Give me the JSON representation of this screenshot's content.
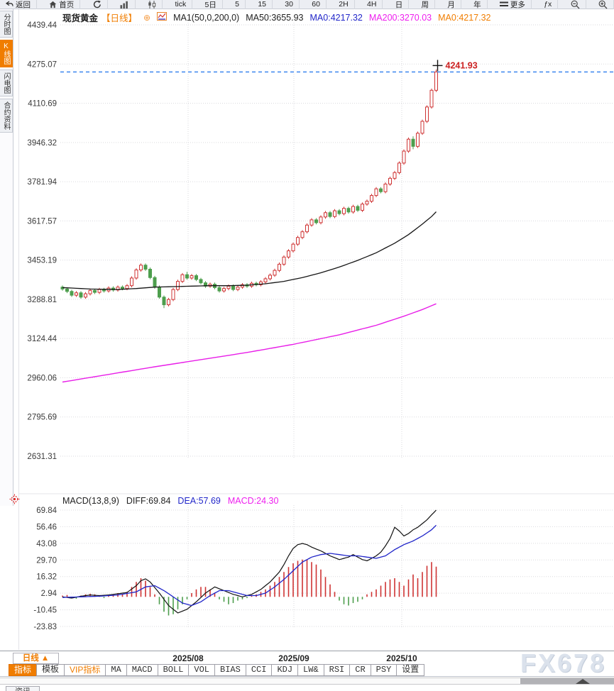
{
  "toolbar": {
    "items": [
      {
        "icon": "back-icon",
        "label": "返回"
      },
      {
        "icon": "home-icon",
        "label": "首页"
      },
      {
        "icon": "refresh-icon",
        "label": ""
      },
      {
        "icon": "bar-chart-icon",
        "label": ""
      },
      {
        "icon": "candlestick-icon",
        "label": ""
      },
      {
        "icon": "",
        "label": "tick"
      },
      {
        "icon": "",
        "label": "5日"
      },
      {
        "icon": "",
        "label": "5"
      },
      {
        "icon": "",
        "label": "15"
      },
      {
        "icon": "",
        "label": "30"
      },
      {
        "icon": "",
        "label": "60"
      },
      {
        "icon": "",
        "label": "2H"
      },
      {
        "icon": "",
        "label": "4H"
      },
      {
        "icon": "",
        "label": "日"
      },
      {
        "icon": "",
        "label": "周"
      },
      {
        "icon": "",
        "label": "月"
      },
      {
        "icon": "",
        "label": "年"
      },
      {
        "icon": "more-icon",
        "label": "更多"
      },
      {
        "icon": "",
        "label": "ƒx"
      },
      {
        "icon": "zoom-out-icon",
        "label": ""
      },
      {
        "icon": "zoom-in-icon",
        "label": ""
      }
    ]
  },
  "sidebar": {
    "items": [
      {
        "label": "分时图",
        "selected": false
      },
      {
        "label": "K线图",
        "selected": true
      },
      {
        "label": "闪电图",
        "selected": false
      },
      {
        "label": "合约资料",
        "selected": false
      }
    ]
  },
  "chart_header": {
    "symbol": "现货黄金",
    "period": "【日线】",
    "ma_settings": "MA1(50,0,200,0)",
    "ma50": "MA50:3655.93",
    "ma0_blue": "MA0:4217.32",
    "ma200": "MA200:3270.03",
    "ma0_orange": "MA0:4217.32"
  },
  "macd_header": {
    "title": "MACD(13,8,9)",
    "diff": "DIFF:69.84",
    "dea": "DEA:57.69",
    "macd": "MACD:24.30"
  },
  "x_axis": {
    "period_label": "日线 ▲",
    "months": [
      "2025/08",
      "2025/09",
      "2025/10"
    ]
  },
  "tabs": [
    {
      "label": "指标",
      "selected": true,
      "accent": false
    },
    {
      "label": "模板",
      "selected": false,
      "accent": false
    },
    {
      "label": "VIP指标",
      "selected": false,
      "accent": true
    },
    {
      "label": "MA",
      "selected": false,
      "accent": false
    },
    {
      "label": "MACD",
      "selected": false,
      "accent": false
    },
    {
      "label": "BOLL",
      "selected": false,
      "accent": false
    },
    {
      "label": "VOL",
      "selected": false,
      "accent": false
    },
    {
      "label": "BIAS",
      "selected": false,
      "accent": false
    },
    {
      "label": "CCI",
      "selected": false,
      "accent": false
    },
    {
      "label": "KDJ",
      "selected": false,
      "accent": false
    },
    {
      "label": "LW&",
      "selected": false,
      "accent": false
    },
    {
      "label": "RSI",
      "selected": false,
      "accent": false
    },
    {
      "label": "CR",
      "selected": false,
      "accent": false
    },
    {
      "label": "PSY",
      "selected": false,
      "accent": false
    },
    {
      "label": "设置",
      "selected": false,
      "accent": false
    }
  ],
  "bottom_bar": {
    "news_tab": "资讯"
  },
  "watermark": "FX678",
  "colors": {
    "accent_orange": "#f07d00",
    "up_red": "#cf3333",
    "down_green": "#4d9e4d",
    "ma50_black": "#151515",
    "ma200_magenta": "#e81ee8",
    "dea_blue": "#2126c9",
    "last_price_line_blue": "#2e7ded",
    "last_price_text_red": "#cc2222",
    "grid": "#dadade"
  },
  "chart_data": {
    "type": "candlestick",
    "title": "现货黄金 日线",
    "main": {
      "y_ticks": [
        4439.44,
        4275.07,
        4110.69,
        3946.32,
        3781.94,
        3617.57,
        3453.19,
        3288.81,
        3124.44,
        2960.06,
        2795.69,
        2631.31
      ],
      "x_ticks": [
        "2025/08",
        "2025/09",
        "2025/10"
      ],
      "last_price": 4241.93,
      "candles": [
        [
          3340,
          3347,
          3325,
          3332
        ],
        [
          3332,
          3339,
          3315,
          3322
        ],
        [
          3322,
          3329,
          3299,
          3306
        ],
        [
          3306,
          3323,
          3299,
          3316
        ],
        [
          3316,
          3323,
          3291,
          3298
        ],
        [
          3298,
          3319,
          3291,
          3312
        ],
        [
          3312,
          3333,
          3305,
          3326
        ],
        [
          3326,
          3333,
          3311,
          3318
        ],
        [
          3318,
          3337,
          3311,
          3330
        ],
        [
          3330,
          3337,
          3317,
          3324
        ],
        [
          3324,
          3343,
          3317,
          3336
        ],
        [
          3336,
          3343,
          3321,
          3328
        ],
        [
          3328,
          3347,
          3321,
          3340
        ],
        [
          3340,
          3347,
          3327,
          3334
        ],
        [
          3334,
          3353,
          3327,
          3346
        ],
        [
          3346,
          3385,
          3339,
          3378
        ],
        [
          3378,
          3419,
          3371,
          3412
        ],
        [
          3412,
          3439,
          3405,
          3432
        ],
        [
          3432,
          3439,
          3408,
          3415
        ],
        [
          3415,
          3422,
          3373,
          3380
        ],
        [
          3380,
          3387,
          3333,
          3340
        ],
        [
          3340,
          3347,
          3291,
          3298
        ],
        [
          3298,
          3305,
          3252,
          3266
        ],
        [
          3266,
          3295,
          3259,
          3288
        ],
        [
          3288,
          3337,
          3281,
          3330
        ],
        [
          3330,
          3371,
          3323,
          3364
        ],
        [
          3364,
          3399,
          3357,
          3392
        ],
        [
          3392,
          3404,
          3371,
          3378
        ],
        [
          3378,
          3395,
          3371,
          3388
        ],
        [
          3388,
          3395,
          3365,
          3372
        ],
        [
          3372,
          3379,
          3351,
          3358
        ],
        [
          3358,
          3365,
          3337,
          3344
        ],
        [
          3344,
          3359,
          3337,
          3352
        ],
        [
          3352,
          3359,
          3331,
          3338
        ],
        [
          3338,
          3345,
          3317,
          3324
        ],
        [
          3324,
          3341,
          3317,
          3334
        ],
        [
          3334,
          3351,
          3327,
          3344
        ],
        [
          3344,
          3351,
          3323,
          3330
        ],
        [
          3330,
          3347,
          3323,
          3340
        ],
        [
          3340,
          3357,
          3333,
          3350
        ],
        [
          3350,
          3357,
          3337,
          3344
        ],
        [
          3344,
          3363,
          3337,
          3356
        ],
        [
          3356,
          3363,
          3343,
          3350
        ],
        [
          3350,
          3369,
          3343,
          3362
        ],
        [
          3362,
          3382,
          3355,
          3375
        ],
        [
          3375,
          3397,
          3368,
          3390
        ],
        [
          3390,
          3417,
          3383,
          3410
        ],
        [
          3410,
          3443,
          3403,
          3436
        ],
        [
          3436,
          3473,
          3429,
          3466
        ],
        [
          3466,
          3499,
          3459,
          3492
        ],
        [
          3492,
          3527,
          3485,
          3520
        ],
        [
          3520,
          3555,
          3513,
          3548
        ],
        [
          3548,
          3579,
          3541,
          3572
        ],
        [
          3572,
          3607,
          3565,
          3600
        ],
        [
          3600,
          3629,
          3593,
          3622
        ],
        [
          3622,
          3629,
          3603,
          3610
        ],
        [
          3610,
          3641,
          3603,
          3634
        ],
        [
          3634,
          3659,
          3627,
          3652
        ],
        [
          3652,
          3659,
          3629,
          3636
        ],
        [
          3636,
          3667,
          3629,
          3660
        ],
        [
          3660,
          3667,
          3641,
          3648
        ],
        [
          3648,
          3677,
          3641,
          3670
        ],
        [
          3670,
          3677,
          3648,
          3655
        ],
        [
          3655,
          3685,
          3648,
          3678
        ],
        [
          3678,
          3685,
          3655,
          3662
        ],
        [
          3662,
          3695,
          3655,
          3688
        ],
        [
          3688,
          3707,
          3681,
          3700
        ],
        [
          3700,
          3731,
          3693,
          3724
        ],
        [
          3724,
          3759,
          3717,
          3752
        ],
        [
          3752,
          3759,
          3733,
          3740
        ],
        [
          3740,
          3779,
          3733,
          3772
        ],
        [
          3772,
          3803,
          3765,
          3796
        ],
        [
          3796,
          3827,
          3789,
          3820
        ],
        [
          3820,
          3867,
          3813,
          3860
        ],
        [
          3860,
          3917,
          3853,
          3910
        ],
        [
          3910,
          3967,
          3903,
          3960
        ],
        [
          3960,
          3972,
          3918,
          3930
        ],
        [
          3930,
          3992,
          3923,
          3985
        ],
        [
          3985,
          4042,
          3978,
          4035
        ],
        [
          4035,
          4102,
          4028,
          4095
        ],
        [
          4095,
          4172,
          4088,
          4165
        ],
        [
          4165,
          4252,
          4158,
          4241.93
        ]
      ],
      "ma50_points": [
        [
          0,
          3338
        ],
        [
          6,
          3332
        ],
        [
          12,
          3330
        ],
        [
          16,
          3334
        ],
        [
          20,
          3340
        ],
        [
          24,
          3342
        ],
        [
          28,
          3344
        ],
        [
          32,
          3346
        ],
        [
          36,
          3346
        ],
        [
          40,
          3348
        ],
        [
          44,
          3354
        ],
        [
          48,
          3364
        ],
        [
          52,
          3380
        ],
        [
          56,
          3400
        ],
        [
          60,
          3424
        ],
        [
          64,
          3452
        ],
        [
          68,
          3484
        ],
        [
          72,
          3524
        ],
        [
          75,
          3560
        ],
        [
          78,
          3604
        ],
        [
          80,
          3636
        ],
        [
          81,
          3655.93
        ]
      ],
      "ma200_points": [
        [
          0,
          2942
        ],
        [
          10,
          2974
        ],
        [
          20,
          3006
        ],
        [
          30,
          3036
        ],
        [
          40,
          3066
        ],
        [
          50,
          3100
        ],
        [
          60,
          3140
        ],
        [
          68,
          3180
        ],
        [
          74,
          3218
        ],
        [
          78,
          3246
        ],
        [
          81,
          3270.03
        ]
      ]
    },
    "macd": {
      "y_ticks": [
        69.84,
        56.46,
        43.08,
        29.7,
        16.32,
        2.94,
        -10.45,
        -23.83
      ],
      "histogram": [
        1,
        1.5,
        -1,
        -1.5,
        1,
        2,
        2.5,
        2,
        1,
        -1,
        1.5,
        2,
        3,
        2,
        4,
        8,
        12,
        15,
        13,
        8,
        2,
        -6,
        -12,
        -15,
        -14,
        -10,
        -6,
        -2,
        3,
        6,
        8,
        8,
        6,
        3,
        -2,
        -4,
        -6,
        -5,
        -3,
        -2,
        -1,
        1,
        2,
        4,
        6,
        9,
        12,
        16,
        20,
        24,
        27,
        29,
        30,
        30,
        28,
        26,
        22,
        16,
        10,
        4,
        -3,
        -6,
        -7,
        -5,
        -4,
        -2,
        2,
        4,
        6,
        9,
        12,
        14,
        15,
        12,
        9,
        14,
        18,
        15,
        20,
        25,
        28,
        24.3
      ],
      "diff_points": [
        [
          0,
          0
        ],
        [
          2,
          -1
        ],
        [
          4,
          0.5
        ],
        [
          6,
          1.5
        ],
        [
          8,
          1
        ],
        [
          10,
          1.5
        ],
        [
          12,
          2.5
        ],
        [
          14,
          3.5
        ],
        [
          16,
          9
        ],
        [
          17,
          13
        ],
        [
          18,
          14.5
        ],
        [
          19,
          12
        ],
        [
          21,
          3
        ],
        [
          23,
          -7
        ],
        [
          25,
          -13
        ],
        [
          27,
          -10
        ],
        [
          29,
          -4
        ],
        [
          31,
          3
        ],
        [
          33,
          8
        ],
        [
          35,
          5
        ],
        [
          37,
          2
        ],
        [
          39,
          0
        ],
        [
          41,
          2
        ],
        [
          43,
          6
        ],
        [
          45,
          12
        ],
        [
          47,
          20
        ],
        [
          48,
          26
        ],
        [
          49,
          33
        ],
        [
          50,
          39
        ],
        [
          51,
          42
        ],
        [
          52,
          43
        ],
        [
          53,
          42
        ],
        [
          54,
          40
        ],
        [
          56,
          37
        ],
        [
          58,
          33
        ],
        [
          60,
          30
        ],
        [
          62,
          32
        ],
        [
          63,
          34
        ],
        [
          64,
          32
        ],
        [
          65,
          30
        ],
        [
          66,
          29
        ],
        [
          67,
          31
        ],
        [
          68,
          33
        ],
        [
          69,
          36
        ],
        [
          70,
          41
        ],
        [
          71,
          47
        ],
        [
          72,
          56
        ],
        [
          73,
          53
        ],
        [
          74,
          49
        ],
        [
          75,
          51
        ],
        [
          76,
          54
        ],
        [
          77,
          56
        ],
        [
          78,
          59
        ],
        [
          79,
          62
        ],
        [
          80,
          66
        ],
        [
          81,
          69.84
        ]
      ],
      "dea_points": [
        [
          0,
          -0.5
        ],
        [
          4,
          0
        ],
        [
          8,
          0.5
        ],
        [
          12,
          1.5
        ],
        [
          16,
          4
        ],
        [
          18,
          8
        ],
        [
          20,
          9
        ],
        [
          22,
          5
        ],
        [
          24,
          0
        ],
        [
          26,
          -5
        ],
        [
          28,
          -7
        ],
        [
          30,
          -4
        ],
        [
          32,
          1
        ],
        [
          34,
          5
        ],
        [
          36,
          5
        ],
        [
          38,
          3
        ],
        [
          40,
          1
        ],
        [
          42,
          1
        ],
        [
          44,
          3
        ],
        [
          46,
          8
        ],
        [
          48,
          14
        ],
        [
          50,
          21
        ],
        [
          52,
          28
        ],
        [
          54,
          32
        ],
        [
          56,
          34
        ],
        [
          58,
          35
        ],
        [
          60,
          34
        ],
        [
          62,
          33
        ],
        [
          64,
          33
        ],
        [
          66,
          32
        ],
        [
          68,
          31
        ],
        [
          70,
          33
        ],
        [
          72,
          38
        ],
        [
          74,
          42
        ],
        [
          76,
          45
        ],
        [
          78,
          49
        ],
        [
          80,
          54
        ],
        [
          81,
          57.69
        ]
      ]
    }
  }
}
